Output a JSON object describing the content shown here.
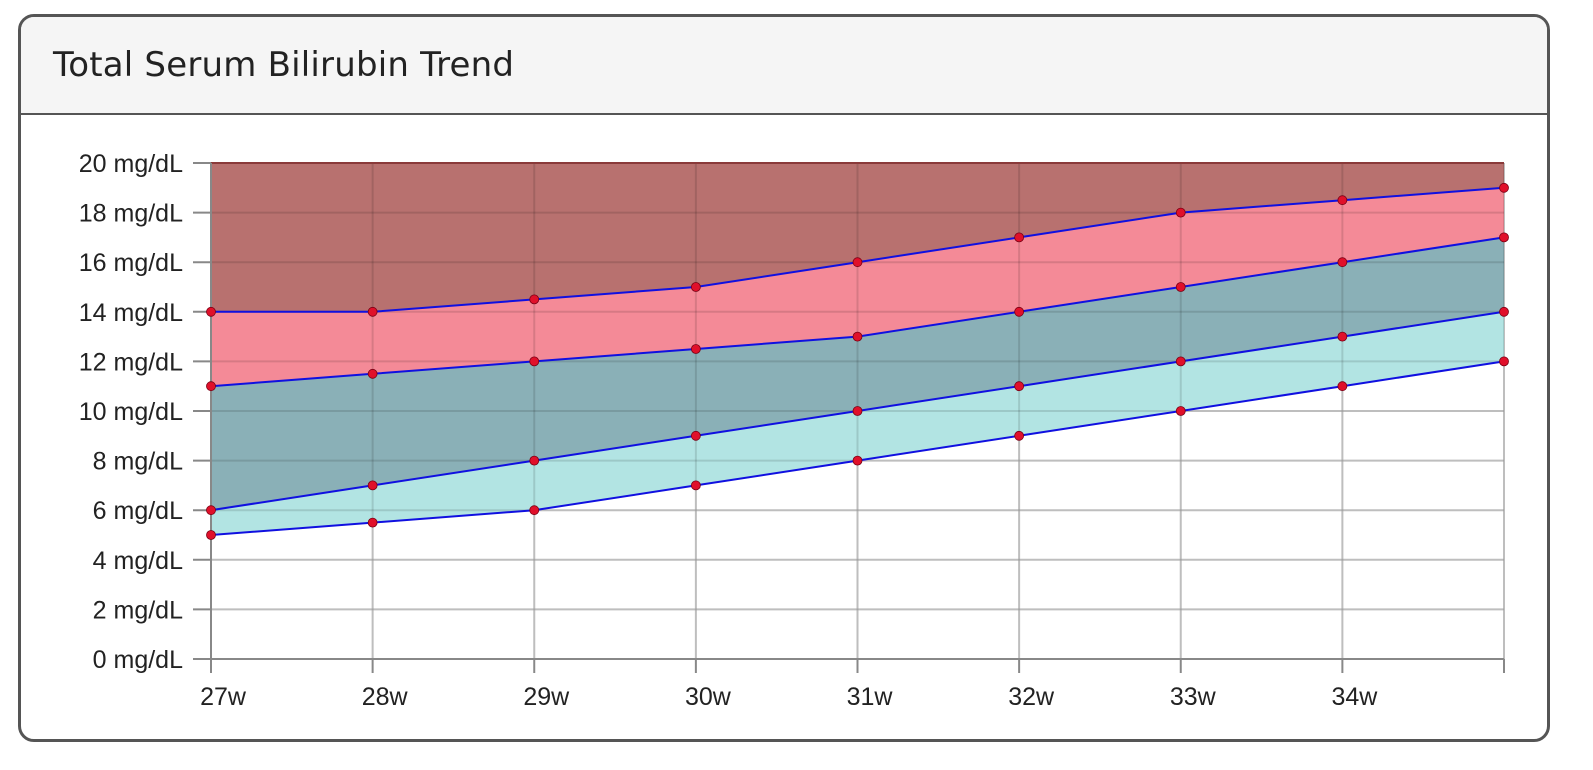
{
  "card": {
    "title": "Total Serum Bilirubin Trend"
  },
  "chart_data": {
    "type": "area",
    "title": "Total Serum Bilirubin Trend",
    "xlabel": "",
    "ylabel": "",
    "x": [
      27,
      28,
      29,
      30,
      31,
      32,
      33,
      34,
      35
    ],
    "x_tick_labels": [
      "27w",
      "28w",
      "29w",
      "30w",
      "31w",
      "32w",
      "33w",
      "34w"
    ],
    "y_tick_labels": [
      "0 mg/dL",
      "2 mg/dL",
      "4 mg/dL",
      "6 mg/dL",
      "8 mg/dL",
      "10 mg/dL",
      "12 mg/dL",
      "14 mg/dL",
      "16 mg/dL",
      "18 mg/dL",
      "20 mg/dL"
    ],
    "y_ticks": [
      0,
      2,
      4,
      6,
      8,
      10,
      12,
      14,
      16,
      18,
      20
    ],
    "xlim": [
      27,
      35
    ],
    "ylim": [
      0,
      20
    ],
    "grid": true,
    "legend": "none",
    "series": [
      {
        "values": [
          5,
          5.5,
          6,
          7,
          8,
          9,
          10,
          11,
          12
        ]
      },
      {
        "values": [
          6,
          7,
          8,
          9,
          10,
          11,
          12,
          13,
          14
        ]
      },
      {
        "values": [
          11,
          11.5,
          12,
          12.5,
          13,
          14,
          15,
          16,
          17
        ]
      },
      {
        "values": [
          14,
          14,
          14.5,
          15,
          16,
          17,
          18,
          18.5,
          19
        ]
      }
    ],
    "bands": [
      {
        "from_series": 0,
        "to_series": 1,
        "color": "#b2e4e3"
      },
      {
        "from_series": 1,
        "to_series": 2,
        "color": "#8ab0b7"
      },
      {
        "from_series": 2,
        "to_series": 3,
        "color": "#f48a97"
      },
      {
        "from_series": 3,
        "to_top": true,
        "color": "#b8716f"
      }
    ],
    "colors": {
      "line": "#1010e0",
      "point": "#e0102a",
      "grid": "#d9d9d9",
      "axis": "#888888"
    }
  }
}
